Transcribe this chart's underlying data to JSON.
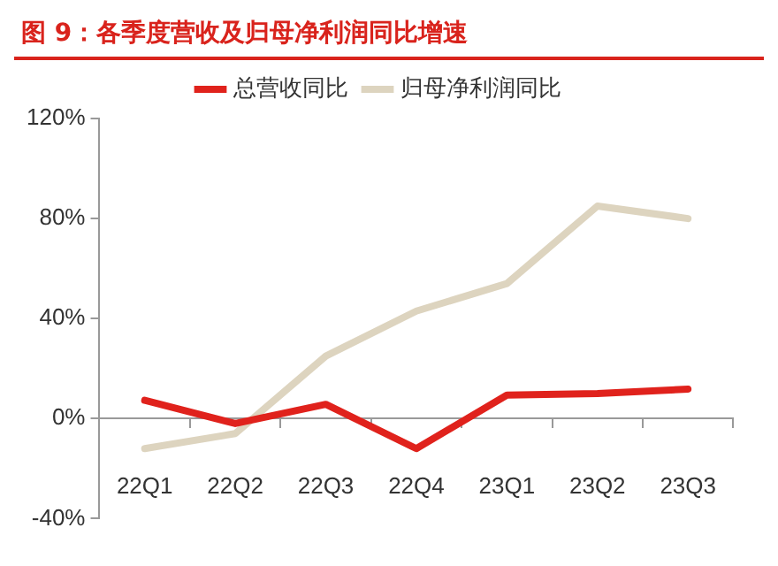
{
  "chart_data": {
    "type": "line",
    "title": "图 9：各季度营收及归母净利润同比增速",
    "categories": [
      "22Q1",
      "22Q2",
      "22Q3",
      "22Q4",
      "23Q1",
      "23Q2",
      "23Q3"
    ],
    "series": [
      {
        "name": "总营收同比",
        "color": "#e0221c",
        "values": [
          7.3,
          -2,
          5.7,
          -12,
          9.4,
          10,
          11.8
        ]
      },
      {
        "name": "归母净利润同比",
        "color": "#ddd4bf",
        "values": [
          -12,
          -6,
          25,
          43,
          54,
          85,
          80
        ]
      }
    ],
    "ylim": [
      -40,
      120
    ],
    "yticks": [
      {
        "value": -40,
        "label": "-40%"
      },
      {
        "value": 0,
        "label": "0%"
      },
      {
        "value": 40,
        "label": "40%"
      },
      {
        "value": 80,
        "label": "80%"
      },
      {
        "value": 120,
        "label": "120%"
      }
    ],
    "grid": false,
    "legend": "top",
    "marker": "none",
    "line_style": "solid"
  }
}
